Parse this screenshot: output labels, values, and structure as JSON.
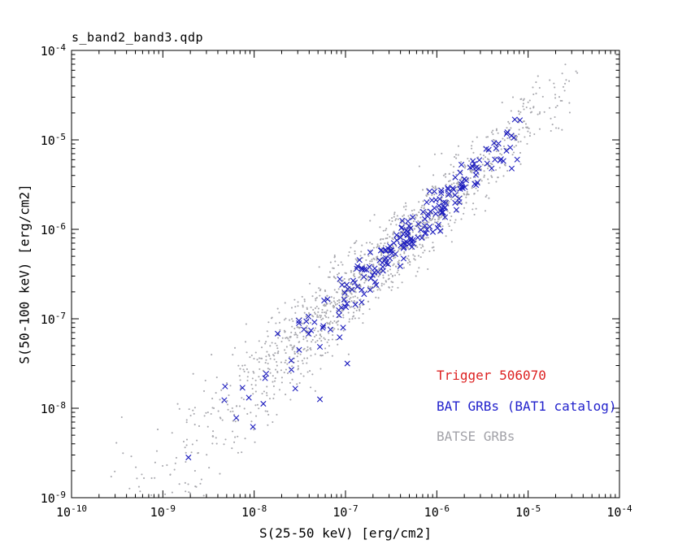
{
  "chart_data": {
    "type": "scatter",
    "title": "s_band2_band3.qdp",
    "xlabel": "S(25-50 keV) [erg/cm2]",
    "ylabel": "S(50-100 keV) [erg/cm2]",
    "x_scale": "log",
    "y_scale": "log",
    "xlim_exp": [
      -10,
      -4
    ],
    "ylim_exp": [
      -9,
      -4
    ],
    "x_tick_exponents": [
      -10,
      -9,
      -8,
      -7,
      -6,
      -5,
      -4
    ],
    "y_tick_exponents": [
      -4,
      -5,
      -6,
      -7,
      -8,
      -9
    ],
    "grid": false,
    "frame_color": "#000000",
    "trend": {
      "space": "log10",
      "slope": 0.97,
      "intercept": 0.04
    },
    "legend": {
      "position": "inside-lower-right",
      "entries": [
        {
          "label": "Trigger 506070",
          "color": "#dd2222"
        },
        {
          "label": "BAT GRBs (BAT1 catalog)",
          "color": "#2222cc"
        },
        {
          "label": "BATSE GRBs",
          "color": "#a2a2a8"
        }
      ]
    },
    "series": [
      {
        "name": "BATSE GRBs",
        "marker": "dot",
        "color": "#a8a8ae",
        "count": 1500,
        "seed": 101,
        "logx_center": -6.65,
        "logx_sd": 0.92,
        "logx_min": -9.6,
        "logx_max": -4.45,
        "uniform_frac": 0.18,
        "sigma": 0.2,
        "funnel_ref": -6.6,
        "funnel_gain": 0.45,
        "notable_points_log10": [
          [
            -9.45,
            -8.1
          ],
          [
            -8.7,
            -8.95
          ],
          [
            -8.75,
            -8.6
          ],
          [
            -4.6,
            -4.45
          ],
          [
            -4.75,
            -4.9
          ]
        ]
      },
      {
        "name": "BAT GRBs (BAT1 catalog)",
        "marker": "x",
        "color": "#1f1fbf",
        "count": 215,
        "seed": 55,
        "logx_center": -6.35,
        "logx_sd": 0.75,
        "logx_min": -8.45,
        "logx_max": -5.05,
        "uniform_frac": 0.12,
        "sigma": 0.13,
        "funnel_ref": -6.6,
        "funnel_gain": 0.3,
        "notable_points_log10": [
          [
            -8.72,
            -8.55
          ],
          [
            -7.9,
            -7.95
          ],
          [
            -7.55,
            -7.78
          ],
          [
            -7.28,
            -7.9
          ],
          [
            -6.98,
            -7.5
          ],
          [
            -5.09,
            -4.78
          ],
          [
            -5.12,
            -5.22
          ],
          [
            -5.18,
            -5.32
          ]
        ]
      }
    ]
  }
}
